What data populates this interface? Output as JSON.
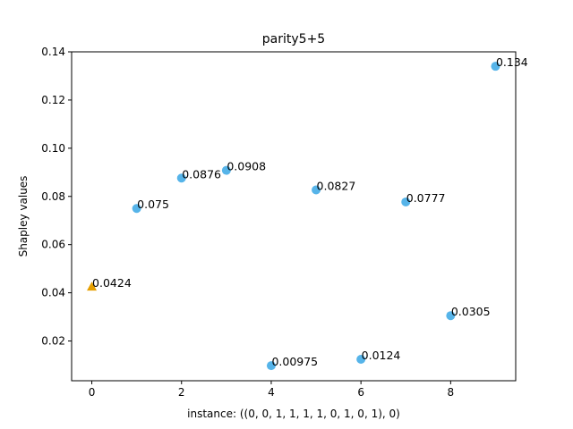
{
  "chart_data": {
    "type": "scatter",
    "title": "parity5+5",
    "xlabel": "instance: ((0, 0, 1, 1, 1, 1, 0, 1, 0, 1), 0)",
    "ylabel": "Shapley values",
    "xlim": [
      -0.45,
      9.45
    ],
    "ylim": [
      0.0035,
      0.14
    ],
    "xticks": [
      0,
      2,
      4,
      6,
      8
    ],
    "yticks": [
      0.02,
      0.04,
      0.06,
      0.08,
      0.1,
      0.12,
      0.14
    ],
    "ytick_labels": [
      "0.02",
      "0.04",
      "0.06",
      "0.08",
      "0.10",
      "0.12",
      "0.14"
    ],
    "grid": false,
    "series": [
      {
        "marker": "triangle",
        "color": "#e69f00",
        "points": [
          {
            "x": 0,
            "y": 0.0424,
            "label": "0.0424"
          }
        ]
      },
      {
        "marker": "circle",
        "color": "#56b4e9",
        "points": [
          {
            "x": 1,
            "y": 0.075,
            "label": "0.075"
          },
          {
            "x": 2,
            "y": 0.0876,
            "label": "0.0876"
          },
          {
            "x": 3,
            "y": 0.0908,
            "label": "0.0908"
          },
          {
            "x": 4,
            "y": 0.00975,
            "label": "0.00975"
          },
          {
            "x": 5,
            "y": 0.0827,
            "label": "0.0827"
          },
          {
            "x": 6,
            "y": 0.0124,
            "label": "0.0124"
          },
          {
            "x": 7,
            "y": 0.0777,
            "label": "0.0777"
          },
          {
            "x": 8,
            "y": 0.0305,
            "label": "0.0305"
          },
          {
            "x": 9,
            "y": 0.134,
            "label": "0.134"
          }
        ]
      }
    ]
  }
}
